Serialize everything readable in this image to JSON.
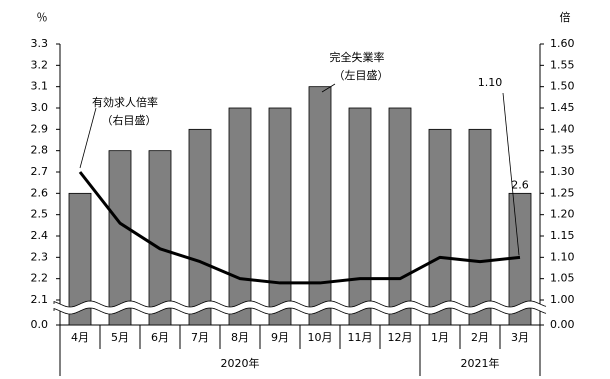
{
  "chart_data": {
    "type": "bar_line",
    "category_groups": [
      {
        "label": "2020年",
        "categories": [
          "4月",
          "5月",
          "6月",
          "7月",
          "8月",
          "9月",
          "10月",
          "11月",
          "12月"
        ]
      },
      {
        "label": "2021年",
        "categories": [
          "1月",
          "2月",
          "3月"
        ]
      }
    ],
    "series": [
      {
        "name": "完全失業率",
        "type": "bar",
        "color": "#808080",
        "axis": "y",
        "values": [
          2.6,
          2.8,
          2.8,
          2.9,
          3.0,
          3.0,
          3.1,
          3.0,
          3.0,
          2.9,
          2.9,
          2.6
        ],
        "value_labels": [
          null,
          null,
          null,
          null,
          null,
          null,
          null,
          null,
          null,
          null,
          null,
          "2.6"
        ]
      },
      {
        "name": "有効求人倍率",
        "type": "line",
        "color": "#000000",
        "axis": "y2",
        "values": [
          1.3,
          1.18,
          1.12,
          1.09,
          1.05,
          1.04,
          1.04,
          1.05,
          1.05,
          1.1,
          1.09,
          1.1
        ],
        "value_labels": [
          null,
          null,
          null,
          null,
          null,
          null,
          null,
          null,
          null,
          null,
          null,
          "1.10"
        ]
      }
    ],
    "annotations": [
      {
        "lines": [
          "完全失業率",
          "（左目盛）"
        ]
      },
      {
        "lines": [
          "有効求人倍率",
          "（右目盛）"
        ]
      }
    ],
    "y_unit": "％",
    "y2_unit": "倍",
    "axis_break": true,
    "ylim": [
      0,
      3.3
    ],
    "yticks": [
      {
        "value": 0,
        "label": "0.0"
      },
      2.1,
      2.2,
      2.3,
      2.4,
      2.5,
      2.6,
      2.7,
      2.8,
      2.9,
      {
        "value": 3,
        "label": "3.0"
      },
      3.1,
      3.2,
      3.3
    ],
    "y2lim": [
      0,
      1.6
    ],
    "y2ticks": [
      {
        "value": 0,
        "label": "0.00"
      },
      {
        "value": 1,
        "label": "1.00"
      },
      {
        "value": 1.05,
        "label": "1.05"
      },
      {
        "value": 1.1,
        "label": "1.10"
      },
      {
        "value": 1.15,
        "label": "1.15"
      },
      {
        "value": 1.2,
        "label": "1.20"
      },
      {
        "value": 1.25,
        "label": "1.25"
      },
      {
        "value": 1.3,
        "label": "1.30"
      },
      {
        "value": 1.35,
        "label": "1.35"
      },
      {
        "value": 1.4,
        "label": "1.40"
      },
      {
        "value": 1.45,
        "label": "1.45"
      },
      {
        "value": 1.5,
        "label": "1.50"
      },
      {
        "value": 1.55,
        "label": "1.55"
      },
      {
        "value": 1.6,
        "label": "1.60"
      }
    ]
  }
}
